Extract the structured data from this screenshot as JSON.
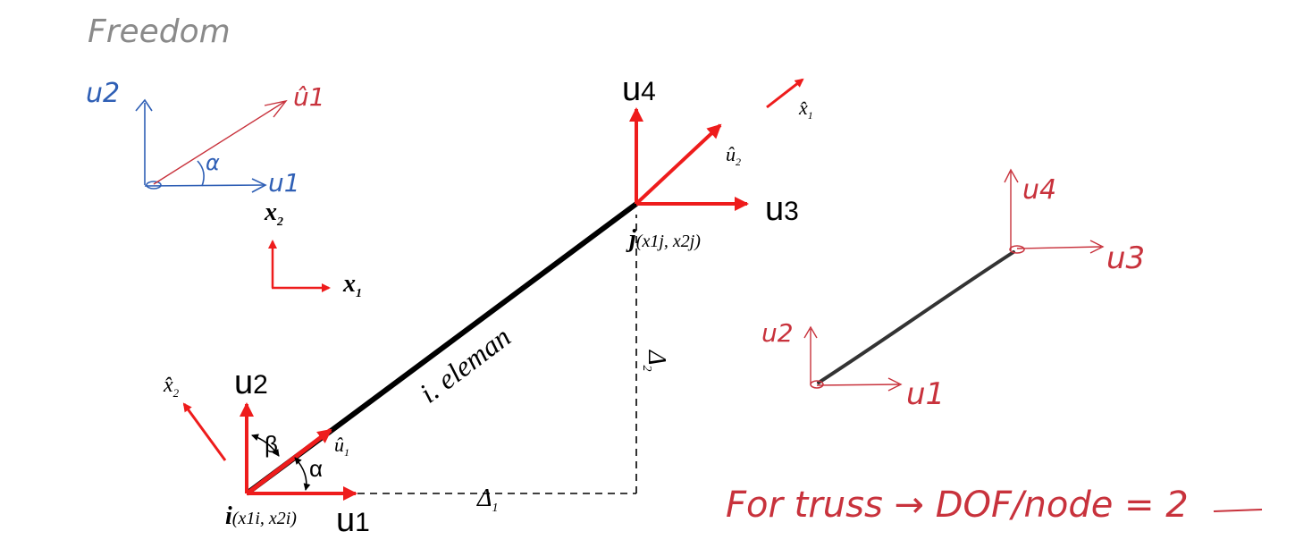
{
  "colors": {
    "pencil": "#8a8a8a",
    "blue_ink": "#2f5fb5",
    "red_ink": "#c8323c",
    "arrow_red": "#ee1c1c",
    "black": "#000000",
    "member": "#333333"
  },
  "labels": {
    "freedom": "Freedom",
    "sketch_u2": "u2",
    "sketch_u1_hat": "û1",
    "sketch_u1": "u1",
    "sketch_alpha": "α",
    "x2_base": "x",
    "x2_sub": "2",
    "x1_base": "x",
    "x1_sub": "1",
    "u4_base": "u",
    "u4_sub": "4",
    "u3_base": "u",
    "u3_sub": "3",
    "u2_base": "u",
    "u2_sub": "2",
    "u1_base": "u",
    "u1_sub": "1",
    "u2_hat_base": "û",
    "u2_hat_sub": "2",
    "u1_hat_base": "û",
    "u1_hat_sub": "1",
    "x1_hat_base": "x̂",
    "x1_hat_sub": "1",
    "x2_hat_base": "x̂",
    "x2_hat_sub": "2",
    "node_j": "j",
    "coords_j": "(x1j, x2j)",
    "node_i": "i",
    "coords_i": "(x1i, x2i)",
    "element": "i. eleman",
    "delta1_base": "Δ",
    "delta1_sub": "1",
    "delta2_base": "Δ",
    "delta2_sub": "2",
    "alpha": "α",
    "beta": "β",
    "right_u4": "u4",
    "right_u3": "u3",
    "right_u2": "u2",
    "right_u1": "u1",
    "note": "For truss → DOF/node = 2"
  }
}
